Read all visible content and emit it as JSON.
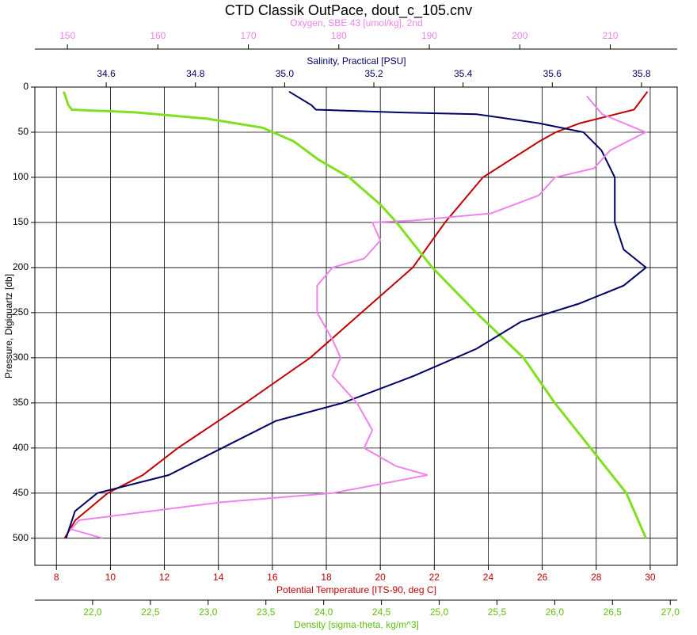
{
  "chart_data": {
    "type": "line",
    "title": "CTD Classik OutPace, dout_c_105.cnv",
    "ylabel": "Pressure, Digiquartz [db]",
    "ylim": [
      0,
      530
    ],
    "yticks": [
      0,
      50,
      100,
      150,
      200,
      250,
      300,
      350,
      400,
      450,
      500
    ],
    "y_inverted": true,
    "grid": true,
    "series": [
      {
        "name": "Potential Temperature [ITS-90, deg C]",
        "color": "#c00000",
        "axis": "bottom",
        "xlim": [
          7.2,
          31.0
        ],
        "xticks": [
          8,
          10,
          12,
          14,
          16,
          18,
          20,
          22,
          24,
          26,
          28,
          30
        ],
        "pressure": [
          5,
          25,
          40,
          50,
          60,
          100,
          150,
          200,
          250,
          300,
          350,
          400,
          430,
          450,
          480,
          500
        ],
        "values": [
          29.9,
          29.4,
          27.4,
          26.5,
          25.9,
          23.8,
          22.4,
          21.2,
          19.3,
          17.4,
          15.0,
          12.5,
          11.2,
          9.9,
          8.7,
          8.3
        ]
      },
      {
        "name": "Density [sigma-theta, kg/m^3]",
        "color": "#80e020",
        "axis": "bottom",
        "xlim": [
          21.5,
          27.06
        ],
        "xticks": [
          {
            "value": 22,
            "label": "22,0"
          },
          {
            "value": 22.5,
            "label": "22,5"
          },
          {
            "value": 23,
            "label": "23,0"
          },
          {
            "value": 23.5,
            "label": "23,5"
          },
          {
            "value": 24,
            "label": "24,0"
          },
          {
            "value": 24.5,
            "label": "24,5"
          },
          {
            "value": 25,
            "label": "25,0"
          },
          {
            "value": 25.5,
            "label": "25,5"
          },
          {
            "value": 26,
            "label": "26,0"
          },
          {
            "value": 26.5,
            "label": "26,5"
          },
          {
            "value": 27,
            "label": "27,0"
          }
        ],
        "pressure": [
          5,
          20,
          25,
          28,
          35,
          45,
          60,
          80,
          100,
          130,
          150,
          200,
          250,
          300,
          350,
          400,
          450,
          500
        ],
        "values": [
          21.75,
          21.79,
          21.82,
          22.37,
          22.99,
          23.47,
          23.74,
          23.95,
          24.22,
          24.49,
          24.63,
          24.94,
          25.32,
          25.73,
          26.0,
          26.31,
          26.62,
          26.79
        ]
      },
      {
        "name": "Salinity, Practical [PSU]",
        "color": "#000066",
        "axis": "top",
        "xlim": [
          34.44,
          35.88
        ],
        "xticks": [
          34.6,
          34.8,
          {
            "value": 35,
            "label": "35.0"
          },
          35.2,
          35.4,
          35.6,
          35.8
        ],
        "pressure": [
          5,
          20,
          25,
          28,
          30,
          40,
          50,
          70,
          100,
          150,
          180,
          200,
          220,
          240,
          260,
          290,
          320,
          350,
          370,
          400,
          430,
          450,
          470,
          500
        ],
        "values": [
          35.01,
          35.06,
          35.07,
          35.25,
          35.43,
          35.57,
          35.67,
          35.71,
          35.74,
          35.74,
          35.76,
          35.81,
          35.76,
          35.66,
          35.53,
          35.43,
          35.29,
          35.13,
          34.98,
          34.86,
          34.74,
          34.58,
          34.53,
          34.51
        ]
      },
      {
        "name": "Oxygen, SBE 43 [umol/kg], 2nd",
        "color": "#ee82ee",
        "axis": "top",
        "xlim": [
          146.4,
          217.4
        ],
        "xticks": [
          150,
          160,
          170,
          180,
          190,
          200,
          210
        ],
        "pressure": [
          10,
          30,
          50,
          70,
          90,
          100,
          120,
          140,
          148,
          150,
          170,
          190,
          200,
          220,
          250,
          280,
          300,
          320,
          350,
          380,
          400,
          420,
          430,
          450,
          460,
          480,
          490,
          500
        ],
        "values": [
          207.4,
          209.1,
          213.9,
          210,
          208.2,
          203.9,
          202.1,
          196.8,
          188,
          183.7,
          184.6,
          182.8,
          179.3,
          177.6,
          177.6,
          179.3,
          180.2,
          179.3,
          182,
          183.7,
          182.8,
          186.3,
          189.8,
          179.3,
          167.1,
          151.3,
          150.4,
          153.9
        ]
      }
    ]
  }
}
